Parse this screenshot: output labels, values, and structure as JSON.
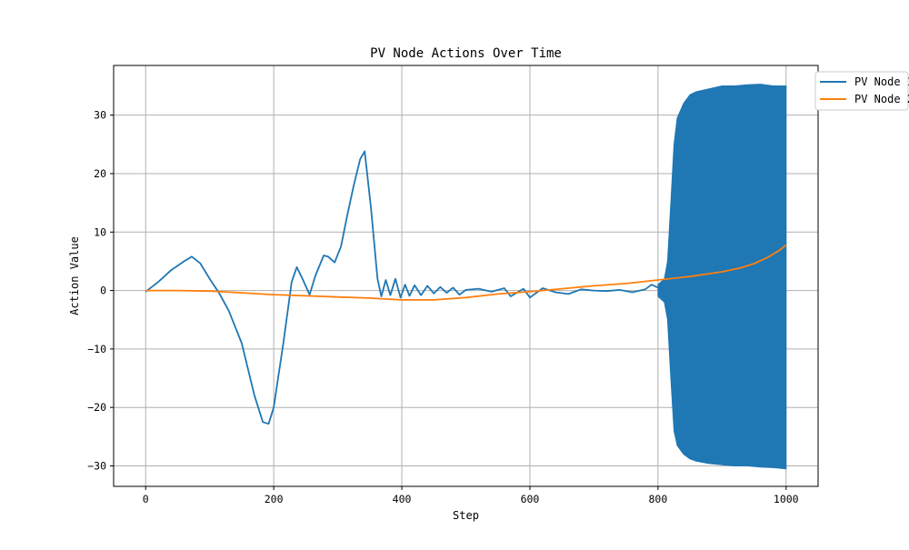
{
  "chart_data": {
    "type": "line",
    "title": "PV Node Actions Over Time",
    "xlabel": "Step",
    "ylabel": "Action Value",
    "xlim": [
      -50,
      1050
    ],
    "ylim": [
      -33.5,
      38.5
    ],
    "x_ticks": [
      0,
      200,
      400,
      600,
      800,
      1000
    ],
    "x_tick_labels": [
      "0",
      "200",
      "400",
      "600",
      "800",
      "1000"
    ],
    "y_ticks": [
      -30,
      -20,
      -10,
      0,
      10,
      20,
      30
    ],
    "y_tick_labels": [
      "−30",
      "−20",
      "−10",
      "0",
      "10",
      "20",
      "30"
    ],
    "grid": true,
    "legend_position": "outside top-right",
    "series": [
      {
        "name": "PV Node 1",
        "color": "#1f77b4",
        "x": [
          0,
          20,
          40,
          60,
          72,
          85,
          100,
          115,
          130,
          150,
          170,
          183,
          192,
          200,
          215,
          228,
          236,
          245,
          256,
          265,
          278,
          285,
          295,
          305,
          315,
          325,
          335,
          342,
          352,
          362,
          368,
          375,
          382,
          390,
          398,
          405,
          412,
          420,
          430,
          440,
          450,
          460,
          470,
          480,
          490,
          500,
          520,
          540,
          560,
          570,
          590,
          600,
          620,
          640,
          660,
          680,
          700,
          720,
          740,
          760,
          780,
          790,
          800
        ],
        "y": [
          -0.2,
          1.5,
          3.5,
          5.0,
          5.8,
          4.7,
          2.0,
          -0.5,
          -3.5,
          -9.0,
          -18.0,
          -22.5,
          -22.8,
          -20.0,
          -9.0,
          1.5,
          4.0,
          2.0,
          -0.7,
          2.5,
          6.0,
          5.8,
          4.8,
          7.5,
          13.0,
          18.0,
          22.5,
          23.8,
          14.0,
          2.0,
          -1.0,
          1.8,
          -0.8,
          2.0,
          -1.2,
          1.0,
          -0.9,
          0.9,
          -0.8,
          0.8,
          -0.5,
          0.6,
          -0.4,
          0.5,
          -0.7,
          0.1,
          0.3,
          -0.2,
          0.4,
          -1.0,
          0.3,
          -1.2,
          0.4,
          -0.3,
          -0.6,
          0.2,
          0.0,
          -0.1,
          0.1,
          -0.3,
          0.2,
          1.0,
          0.5
        ],
        "oscillation_band": {
          "x": [
            800,
            810,
            815,
            820,
            825,
            830,
            840,
            850,
            860,
            880,
            900,
            920,
            940,
            960,
            980,
            1000
          ],
          "upper": [
            1.0,
            2.0,
            5.0,
            15.0,
            25.0,
            29.5,
            32.0,
            33.5,
            34.0,
            34.5,
            35.0,
            35.0,
            35.2,
            35.3,
            35.0,
            35.0
          ],
          "lower": [
            -1.0,
            -2.0,
            -5.0,
            -15.0,
            -24.0,
            -26.5,
            -28.0,
            -28.8,
            -29.2,
            -29.6,
            -29.8,
            -30.0,
            -30.0,
            -30.2,
            -30.3,
            -30.5
          ]
        }
      },
      {
        "name": "PV Node 2",
        "color": "#ff7f0e",
        "x": [
          0,
          50,
          100,
          150,
          200,
          250,
          300,
          350,
          400,
          450,
          500,
          550,
          600,
          650,
          700,
          750,
          800,
          850,
          900,
          930,
          950,
          970,
          990,
          1000
        ],
        "y": [
          0.0,
          0.0,
          -0.1,
          -0.4,
          -0.7,
          -0.9,
          -1.1,
          -1.3,
          -1.6,
          -1.6,
          -1.2,
          -0.6,
          -0.2,
          0.3,
          0.8,
          1.2,
          1.8,
          2.4,
          3.2,
          3.9,
          4.6,
          5.6,
          6.9,
          7.8
        ]
      }
    ]
  }
}
